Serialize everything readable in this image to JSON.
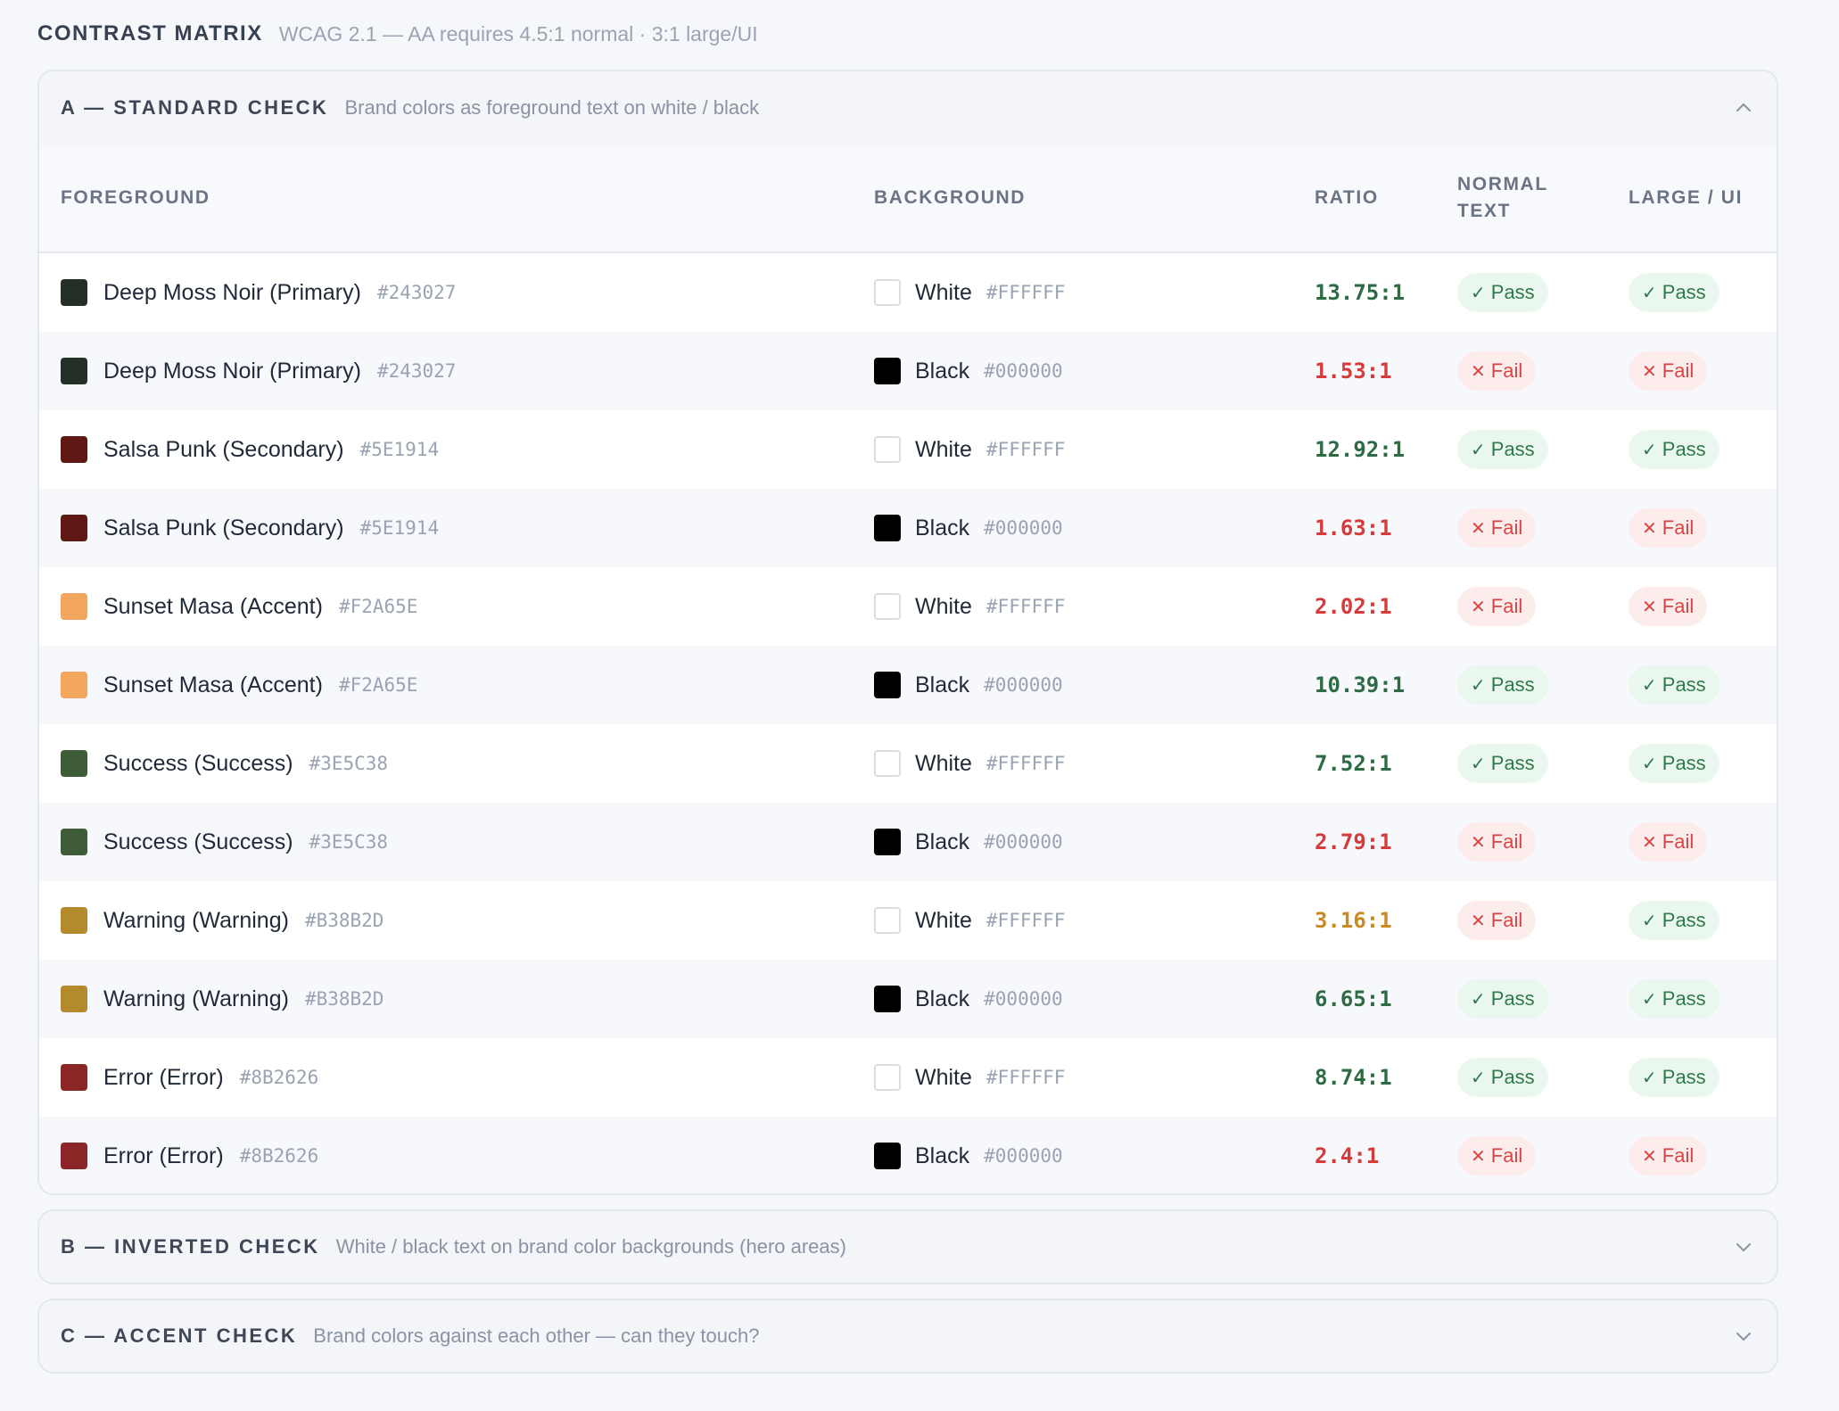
{
  "header": {
    "title": "CONTRAST MATRIX",
    "subtitle": "WCAG 2.1 — AA requires 4.5:1 normal · 3:1 large/UI"
  },
  "colors": {
    "pass_fg": "#2f7a4a",
    "fail_fg": "#d64545",
    "warn_fg": "#c98a24"
  },
  "sections": [
    {
      "title": "A — STANDARD CHECK",
      "description": "Brand colors as foreground text on white / black",
      "expanded": true,
      "columns": {
        "foreground": "FOREGROUND",
        "background": "BACKGROUND",
        "ratio": "RATIO",
        "normal_line1": "NORMAL",
        "normal_line2": "TEXT",
        "large": "LARGE / UI"
      },
      "rows": [
        {
          "fg_name": "Deep Moss Noir (Primary)",
          "fg_hex": "#243027",
          "bg_name": "White",
          "bg_hex": "#FFFFFF",
          "ratio": "13.75:1",
          "level": "good",
          "normal": "Pass",
          "large": "Pass"
        },
        {
          "fg_name": "Deep Moss Noir (Primary)",
          "fg_hex": "#243027",
          "bg_name": "Black",
          "bg_hex": "#000000",
          "ratio": "1.53:1",
          "level": "bad",
          "normal": "Fail",
          "large": "Fail"
        },
        {
          "fg_name": "Salsa Punk (Secondary)",
          "fg_hex": "#5E1914",
          "bg_name": "White",
          "bg_hex": "#FFFFFF",
          "ratio": "12.92:1",
          "level": "good",
          "normal": "Pass",
          "large": "Pass"
        },
        {
          "fg_name": "Salsa Punk (Secondary)",
          "fg_hex": "#5E1914",
          "bg_name": "Black",
          "bg_hex": "#000000",
          "ratio": "1.63:1",
          "level": "bad",
          "normal": "Fail",
          "large": "Fail"
        },
        {
          "fg_name": "Sunset Masa (Accent)",
          "fg_hex": "#F2A65E",
          "bg_name": "White",
          "bg_hex": "#FFFFFF",
          "ratio": "2.02:1",
          "level": "bad",
          "normal": "Fail",
          "large": "Fail"
        },
        {
          "fg_name": "Sunset Masa (Accent)",
          "fg_hex": "#F2A65E",
          "bg_name": "Black",
          "bg_hex": "#000000",
          "ratio": "10.39:1",
          "level": "good",
          "normal": "Pass",
          "large": "Pass"
        },
        {
          "fg_name": "Success (Success)",
          "fg_hex": "#3E5C38",
          "bg_name": "White",
          "bg_hex": "#FFFFFF",
          "ratio": "7.52:1",
          "level": "good",
          "normal": "Pass",
          "large": "Pass"
        },
        {
          "fg_name": "Success (Success)",
          "fg_hex": "#3E5C38",
          "bg_name": "Black",
          "bg_hex": "#000000",
          "ratio": "2.79:1",
          "level": "bad",
          "normal": "Fail",
          "large": "Fail"
        },
        {
          "fg_name": "Warning (Warning)",
          "fg_hex": "#B38B2D",
          "bg_name": "White",
          "bg_hex": "#FFFFFF",
          "ratio": "3.16:1",
          "level": "warn",
          "normal": "Fail",
          "large": "Pass"
        },
        {
          "fg_name": "Warning (Warning)",
          "fg_hex": "#B38B2D",
          "bg_name": "Black",
          "bg_hex": "#000000",
          "ratio": "6.65:1",
          "level": "good",
          "normal": "Pass",
          "large": "Pass"
        },
        {
          "fg_name": "Error (Error)",
          "fg_hex": "#8B2626",
          "bg_name": "White",
          "bg_hex": "#FFFFFF",
          "ratio": "8.74:1",
          "level": "good",
          "normal": "Pass",
          "large": "Pass"
        },
        {
          "fg_name": "Error (Error)",
          "fg_hex": "#8B2626",
          "bg_name": "Black",
          "bg_hex": "#000000",
          "ratio": "2.4:1",
          "level": "bad",
          "normal": "Fail",
          "large": "Fail"
        }
      ]
    },
    {
      "title": "B — INVERTED CHECK",
      "description": "White / black text on brand color backgrounds (hero areas)",
      "expanded": false
    },
    {
      "title": "C — ACCENT CHECK",
      "description": "Brand colors against each other — can they touch?",
      "expanded": false
    }
  ]
}
